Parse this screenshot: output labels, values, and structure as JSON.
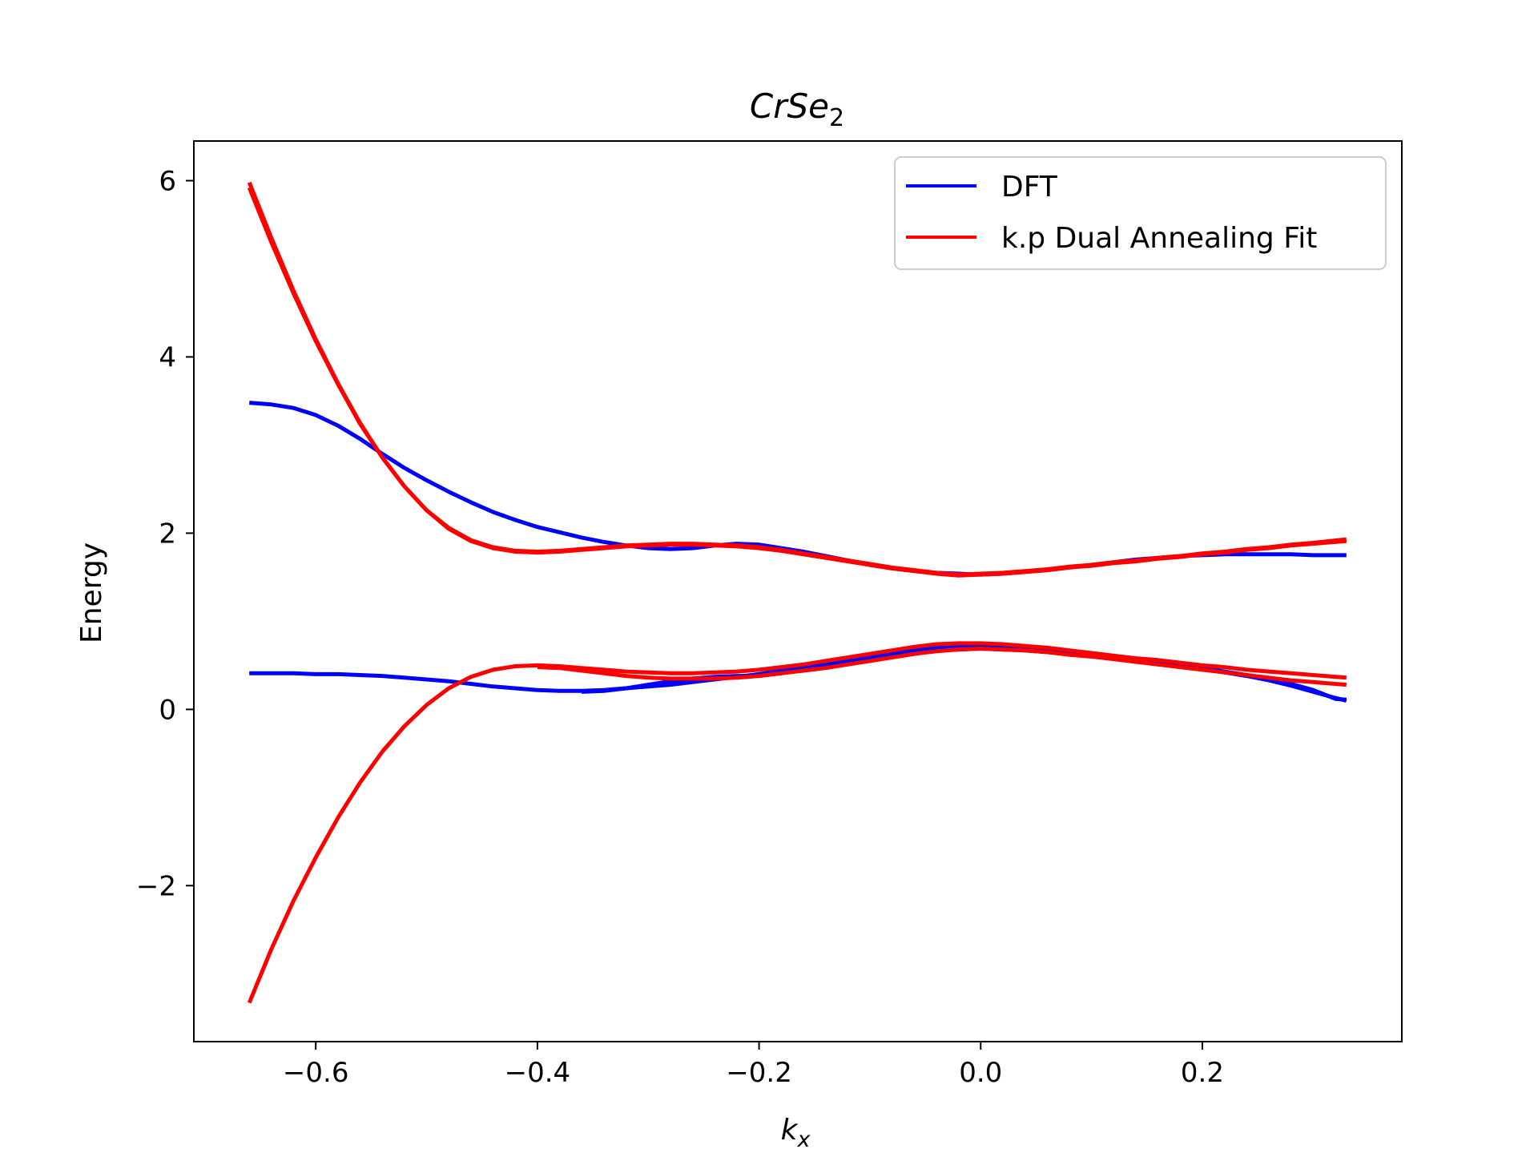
{
  "chart_data": {
    "type": "line",
    "title": "CrSe",
    "title_subscript": "2",
    "xlabel": "k",
    "xlabel_subscript": "x",
    "ylabel": "Energy",
    "xlim": [
      -0.71,
      0.38
    ],
    "ylim": [
      -3.77,
      6.45
    ],
    "x_ticks": [
      -0.6,
      -0.4,
      -0.2,
      0.0,
      0.2
    ],
    "x_tick_labels": [
      "−0.6",
      "−0.4",
      "−0.2",
      "0.0",
      "0.2"
    ],
    "y_ticks": [
      6,
      4,
      2,
      0,
      -2
    ],
    "y_tick_labels": [
      "6",
      "4",
      "2",
      "0",
      "−2"
    ],
    "grid": false,
    "legend": {
      "placement": "top-right",
      "entries": [
        {
          "label": "DFT",
          "color": "#0000ff"
        },
        {
          "label": "k.p Dual Annealing Fit",
          "color": "#ff0000"
        }
      ]
    },
    "series": [
      {
        "group": "DFT",
        "color": "#0000ff",
        "x": [
          -0.66,
          -0.64,
          -0.62,
          -0.6,
          -0.58,
          -0.56,
          -0.54,
          -0.52,
          -0.5,
          -0.48,
          -0.46,
          -0.44,
          -0.42,
          -0.4,
          -0.38,
          -0.36,
          -0.34,
          -0.32,
          -0.3,
          -0.28,
          -0.26,
          -0.24,
          -0.22,
          -0.2,
          -0.18,
          -0.16,
          -0.14,
          -0.12,
          -0.1,
          -0.08,
          -0.06,
          -0.04,
          -0.02,
          0.0,
          0.02,
          0.04,
          0.06,
          0.08,
          0.1,
          0.12,
          0.14,
          0.16,
          0.18,
          0.2,
          0.22,
          0.24,
          0.26,
          0.28,
          0.3,
          0.33
        ],
        "y": [
          3.48,
          3.46,
          3.42,
          3.34,
          3.22,
          3.07,
          2.9,
          2.74,
          2.6,
          2.47,
          2.35,
          2.24,
          2.15,
          2.07,
          2.01,
          1.95,
          1.9,
          1.86,
          1.83,
          1.82,
          1.83,
          1.86,
          1.88,
          1.87,
          1.83,
          1.79,
          1.74,
          1.69,
          1.64,
          1.6,
          1.57,
          1.55,
          1.54,
          1.53,
          1.54,
          1.56,
          1.58,
          1.61,
          1.64,
          1.67,
          1.7,
          1.72,
          1.74,
          1.75,
          1.76,
          1.76,
          1.76,
          1.76,
          1.75,
          1.75
        ]
      },
      {
        "group": "DFT",
        "color": "#0000ff",
        "x": [
          -0.66,
          -0.64,
          -0.62,
          -0.6,
          -0.58,
          -0.56,
          -0.54,
          -0.52,
          -0.5,
          -0.48,
          -0.46,
          -0.44,
          -0.42,
          -0.4,
          -0.38,
          -0.36,
          -0.34,
          -0.32,
          -0.3,
          -0.28,
          -0.26,
          -0.24,
          -0.22,
          -0.2,
          -0.18,
          -0.16,
          -0.14,
          -0.12,
          -0.1,
          -0.08,
          -0.06,
          -0.04,
          -0.02,
          0.0,
          0.02,
          0.04,
          0.06,
          0.08,
          0.1,
          0.12,
          0.14,
          0.16,
          0.18,
          0.2,
          0.22,
          0.24,
          0.26,
          0.28,
          0.3,
          0.32,
          0.33
        ],
        "y": [
          0.41,
          0.41,
          0.41,
          0.4,
          0.4,
          0.39,
          0.38,
          0.36,
          0.34,
          0.32,
          0.29,
          0.26,
          0.24,
          0.22,
          0.21,
          0.21,
          0.22,
          0.24,
          0.26,
          0.28,
          0.31,
          0.34,
          0.37,
          0.4,
          0.44,
          0.48,
          0.52,
          0.56,
          0.6,
          0.64,
          0.67,
          0.7,
          0.72,
          0.73,
          0.72,
          0.7,
          0.68,
          0.65,
          0.62,
          0.59,
          0.56,
          0.53,
          0.5,
          0.47,
          0.43,
          0.39,
          0.35,
          0.29,
          0.22,
          0.12,
          0.11
        ]
      },
      {
        "group": "DFT",
        "color": "#0000ff",
        "x": [
          -0.36,
          -0.34,
          -0.32,
          -0.3,
          -0.28,
          -0.26,
          -0.24,
          -0.22,
          -0.2,
          -0.18,
          -0.16,
          -0.14,
          -0.12,
          -0.1,
          -0.08,
          -0.06,
          -0.04,
          -0.02,
          0.0,
          0.02,
          0.04,
          0.06,
          0.08,
          0.1,
          0.12,
          0.14,
          0.16,
          0.18,
          0.2,
          0.22,
          0.24,
          0.26,
          0.28,
          0.3,
          0.32,
          0.33
        ],
        "y": [
          0.2,
          0.21,
          0.24,
          0.28,
          0.32,
          0.35,
          0.37,
          0.38,
          0.38,
          0.41,
          0.45,
          0.49,
          0.53,
          0.57,
          0.61,
          0.64,
          0.67,
          0.68,
          0.69,
          0.68,
          0.67,
          0.65,
          0.63,
          0.6,
          0.58,
          0.55,
          0.52,
          0.49,
          0.46,
          0.42,
          0.38,
          0.33,
          0.27,
          0.2,
          0.13,
          0.1
        ]
      },
      {
        "group": "k.p Dual Annealing Fit",
        "color": "#ff0000",
        "x": [
          -0.66,
          -0.64,
          -0.62,
          -0.6,
          -0.58,
          -0.56,
          -0.54,
          -0.52,
          -0.5,
          -0.48,
          -0.46,
          -0.44,
          -0.42,
          -0.4,
          -0.38,
          -0.36,
          -0.34,
          -0.32,
          -0.3,
          -0.28,
          -0.26,
          -0.24,
          -0.22,
          -0.2,
          -0.18,
          -0.16,
          -0.14,
          -0.12,
          -0.1,
          -0.08,
          -0.06,
          -0.04,
          -0.02,
          0.0,
          0.02,
          0.04,
          0.06,
          0.08,
          0.1,
          0.12,
          0.14,
          0.16,
          0.18,
          0.2,
          0.22,
          0.24,
          0.26,
          0.28,
          0.3,
          0.33
        ],
        "y": [
          5.98,
          5.35,
          4.75,
          4.2,
          3.7,
          3.25,
          2.86,
          2.53,
          2.26,
          2.06,
          1.92,
          1.84,
          1.8,
          1.79,
          1.8,
          1.82,
          1.84,
          1.86,
          1.87,
          1.88,
          1.88,
          1.87,
          1.86,
          1.84,
          1.81,
          1.77,
          1.73,
          1.69,
          1.65,
          1.61,
          1.58,
          1.55,
          1.53,
          1.54,
          1.55,
          1.57,
          1.59,
          1.62,
          1.64,
          1.67,
          1.69,
          1.72,
          1.74,
          1.77,
          1.79,
          1.82,
          1.84,
          1.87,
          1.89,
          1.93
        ]
      },
      {
        "group": "k.p Dual Annealing Fit",
        "color": "#ff0000",
        "x": [
          -0.66,
          -0.64,
          -0.62,
          -0.6,
          -0.58,
          -0.56,
          -0.54,
          -0.52,
          -0.5,
          -0.48,
          -0.46,
          -0.44,
          -0.42,
          -0.4,
          -0.38,
          -0.36,
          -0.34,
          -0.32,
          -0.3,
          -0.28,
          -0.26,
          -0.24,
          -0.22,
          -0.2,
          -0.18,
          -0.16,
          -0.14,
          -0.12,
          -0.1,
          -0.08,
          -0.06,
          -0.04,
          -0.02,
          0.0,
          0.02,
          0.04,
          0.06,
          0.08,
          0.1,
          0.12,
          0.14,
          0.16,
          0.18,
          0.2,
          0.22,
          0.24,
          0.26,
          0.28,
          0.3,
          0.33
        ],
        "y": [
          5.92,
          5.3,
          4.72,
          4.18,
          3.69,
          3.24,
          2.86,
          2.53,
          2.26,
          2.05,
          1.91,
          1.83,
          1.79,
          1.78,
          1.79,
          1.81,
          1.83,
          1.85,
          1.86,
          1.87,
          1.87,
          1.86,
          1.85,
          1.83,
          1.8,
          1.76,
          1.72,
          1.68,
          1.64,
          1.6,
          1.57,
          1.54,
          1.52,
          1.53,
          1.54,
          1.56,
          1.58,
          1.61,
          1.63,
          1.66,
          1.68,
          1.71,
          1.73,
          1.76,
          1.78,
          1.81,
          1.83,
          1.86,
          1.88,
          1.91
        ]
      },
      {
        "group": "k.p Dual Annealing Fit",
        "color": "#ff0000",
        "x": [
          -0.66,
          -0.64,
          -0.62,
          -0.6,
          -0.58,
          -0.56,
          -0.54,
          -0.52,
          -0.5,
          -0.48,
          -0.46,
          -0.44,
          -0.42,
          -0.4,
          -0.38,
          -0.36,
          -0.34,
          -0.32,
          -0.3,
          -0.28,
          -0.26,
          -0.24,
          -0.22,
          -0.2,
          -0.18,
          -0.16,
          -0.14,
          -0.12,
          -0.1,
          -0.08,
          -0.06,
          -0.04,
          -0.02,
          0.0,
          0.02,
          0.04,
          0.06,
          0.08,
          0.1,
          0.12,
          0.14,
          0.16,
          0.18,
          0.2,
          0.22,
          0.24,
          0.26,
          0.28,
          0.3,
          0.33
        ],
        "y": [
          -3.33,
          -2.72,
          -2.17,
          -1.68,
          -1.23,
          -0.83,
          -0.48,
          -0.19,
          0.05,
          0.24,
          0.37,
          0.45,
          0.49,
          0.5,
          0.49,
          0.47,
          0.45,
          0.43,
          0.42,
          0.41,
          0.41,
          0.42,
          0.43,
          0.45,
          0.48,
          0.51,
          0.55,
          0.59,
          0.63,
          0.67,
          0.71,
          0.74,
          0.75,
          0.75,
          0.74,
          0.72,
          0.7,
          0.67,
          0.64,
          0.61,
          0.58,
          0.56,
          0.53,
          0.5,
          0.48,
          0.45,
          0.43,
          0.41,
          0.39,
          0.36
        ]
      },
      {
        "group": "k.p Dual Annealing Fit",
        "color": "#ff0000",
        "x": [
          -0.4,
          -0.38,
          -0.36,
          -0.34,
          -0.32,
          -0.3,
          -0.28,
          -0.26,
          -0.24,
          -0.22,
          -0.2,
          -0.18,
          -0.16,
          -0.14,
          -0.12,
          -0.1,
          -0.08,
          -0.06,
          -0.04,
          -0.02,
          0.0,
          0.02,
          0.04,
          0.06,
          0.08,
          0.1,
          0.12,
          0.14,
          0.16,
          0.18,
          0.2,
          0.22,
          0.24,
          0.26,
          0.28,
          0.3,
          0.33
        ],
        "y": [
          0.48,
          0.47,
          0.44,
          0.41,
          0.38,
          0.36,
          0.35,
          0.35,
          0.35,
          0.36,
          0.38,
          0.41,
          0.44,
          0.47,
          0.51,
          0.55,
          0.59,
          0.63,
          0.66,
          0.68,
          0.69,
          0.68,
          0.67,
          0.65,
          0.62,
          0.6,
          0.57,
          0.54,
          0.51,
          0.48,
          0.45,
          0.42,
          0.39,
          0.36,
          0.33,
          0.31,
          0.28
        ]
      }
    ]
  }
}
